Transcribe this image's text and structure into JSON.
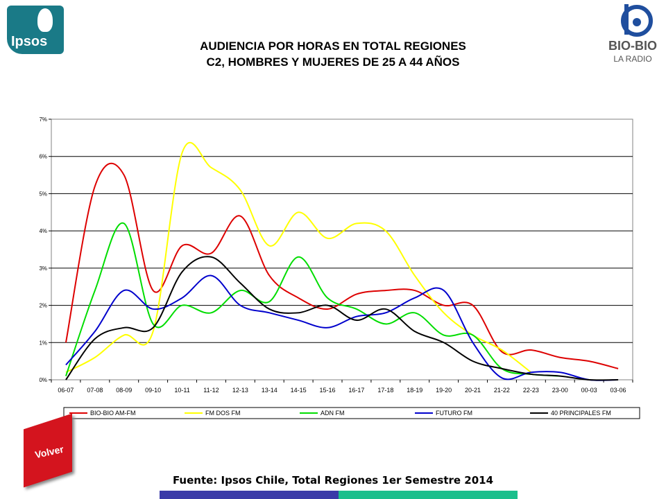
{
  "header": {
    "title_line1": "AUDIENCIA POR HORAS EN TOTAL REGIONES",
    "title_line2": "C2, HOMBRES Y MUJERES DE 25 A 44 AÑOS"
  },
  "logos": {
    "ipsos": "Ipsos",
    "biobio_brand": "BIO-BIO",
    "biobio_sub": "LA RADIO"
  },
  "footer": {
    "source": "Fuente: Ipsos Chile, Total Regiones 1er Semestre 2014",
    "volver_label": "Volver"
  },
  "colors": {
    "bio_bio": "#dd0000",
    "fm_dos": "#ffff00",
    "adn": "#00dd00",
    "futuro": "#0000cc",
    "principales": "#000000"
  },
  "chart_data": {
    "type": "line",
    "categories": [
      "06-07",
      "07-08",
      "08-09",
      "09-10",
      "10-11",
      "11-12",
      "12-13",
      "13-14",
      "14-15",
      "15-16",
      "16-17",
      "17-18",
      "18-19",
      "19-20",
      "20-21",
      "21-22",
      "22-23",
      "23-00",
      "00-03",
      "03-06"
    ],
    "ylim": [
      0,
      7
    ],
    "yticks": [
      "0%",
      "1%",
      "2%",
      "3%",
      "4%",
      "5%",
      "6%",
      "7%"
    ],
    "grid": true,
    "legend_position": "bottom",
    "series": [
      {
        "name": "BIO-BIO AM-FM",
        "color": "#dd0000",
        "values": [
          1.0,
          5.2,
          5.5,
          2.4,
          3.6,
          3.4,
          4.4,
          2.8,
          2.2,
          1.9,
          2.3,
          2.4,
          2.4,
          2.0,
          2.0,
          0.75,
          0.8,
          0.6,
          0.5,
          0.3
        ]
      },
      {
        "name": "FM DOS FM",
        "color": "#ffff00",
        "values": [
          0.2,
          0.6,
          1.2,
          1.3,
          6.1,
          5.7,
          5.1,
          3.6,
          4.5,
          3.8,
          4.2,
          4.0,
          2.8,
          1.8,
          1.2,
          0.8,
          0.2,
          null,
          null,
          null
        ]
      },
      {
        "name": "ADN FM",
        "color": "#00dd00",
        "values": [
          0.1,
          2.4,
          4.2,
          1.5,
          2.0,
          1.8,
          2.4,
          2.1,
          3.3,
          2.2,
          1.9,
          1.5,
          1.8,
          1.2,
          1.2,
          0.3,
          0.15,
          0.1,
          null,
          null
        ]
      },
      {
        "name": "FUTURO FM",
        "color": "#0000cc",
        "values": [
          0.4,
          1.3,
          2.4,
          1.9,
          2.2,
          2.8,
          2.0,
          1.8,
          1.6,
          1.4,
          1.7,
          1.8,
          2.2,
          2.4,
          1.0,
          0.05,
          0.2,
          0.2,
          0.0,
          0.0
        ]
      },
      {
        "name": "40 PRINCIPALES FM",
        "color": "#000000",
        "values": [
          0.0,
          1.1,
          1.4,
          1.4,
          2.9,
          3.3,
          2.6,
          1.9,
          1.8,
          2.0,
          1.6,
          1.9,
          1.3,
          1.0,
          0.5,
          0.3,
          0.15,
          0.1,
          0.0,
          0.0
        ]
      }
    ]
  }
}
